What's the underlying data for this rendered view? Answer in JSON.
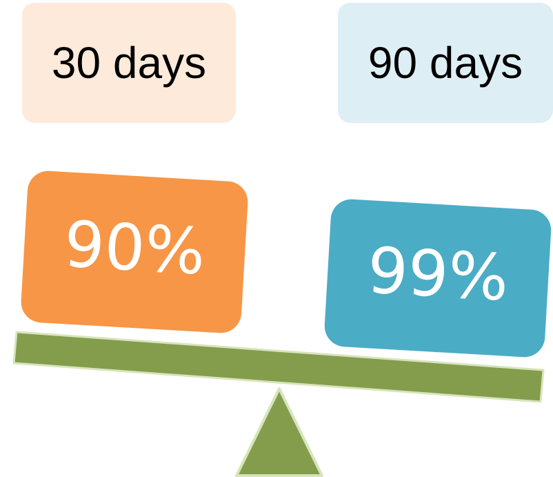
{
  "left_side": {
    "duration_label": "30 days",
    "percentage": "90%",
    "label_color": "#FDEADB",
    "weight_color": "#F79646"
  },
  "right_side": {
    "duration_label": "90 days",
    "percentage": "99%",
    "label_color": "#DEEEF5",
    "weight_color": "#4BACC6"
  },
  "scale": {
    "beam_color": "#839D4C",
    "fulcrum_color": "#839D4C",
    "outline_color": "#D7E4BC"
  }
}
